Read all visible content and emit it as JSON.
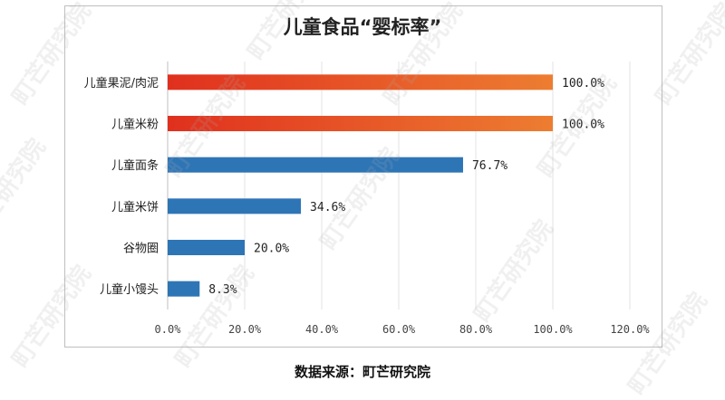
{
  "title": "儿童食品“婴标率”",
  "source": "数据来源：町芒研究院",
  "watermark": "町芒研究院",
  "chart_data": {
    "type": "bar",
    "orientation": "horizontal",
    "title": "儿童食品“婴标率”",
    "categories": [
      "儿童果泥/肉泥",
      "儿童米粉",
      "儿童面条",
      "儿童米饼",
      "谷物圈",
      "儿童小馒头"
    ],
    "values": [
      100.0,
      100.0,
      76.7,
      34.6,
      20.0,
      8.3
    ],
    "value_labels": [
      "100.0%",
      "100.0%",
      "76.7%",
      "34.6%",
      "20.0%",
      "8.3%"
    ],
    "bar_colors": [
      "gradient-red-orange",
      "gradient-red-orange",
      "#2e75b6",
      "#2e75b6",
      "#2e75b6",
      "#2e75b6"
    ],
    "gradient": {
      "start": "#e0301e",
      "end": "#ed7d31"
    },
    "xlim": [
      0,
      120
    ],
    "xticks": [
      0,
      20,
      40,
      60,
      80,
      100,
      120
    ],
    "xtick_labels": [
      "0.0%",
      "20.0%",
      "40.0%",
      "60.0%",
      "80.0%",
      "100.0%",
      "120.0%"
    ],
    "grid": true,
    "xlabel": "",
    "ylabel": ""
  }
}
